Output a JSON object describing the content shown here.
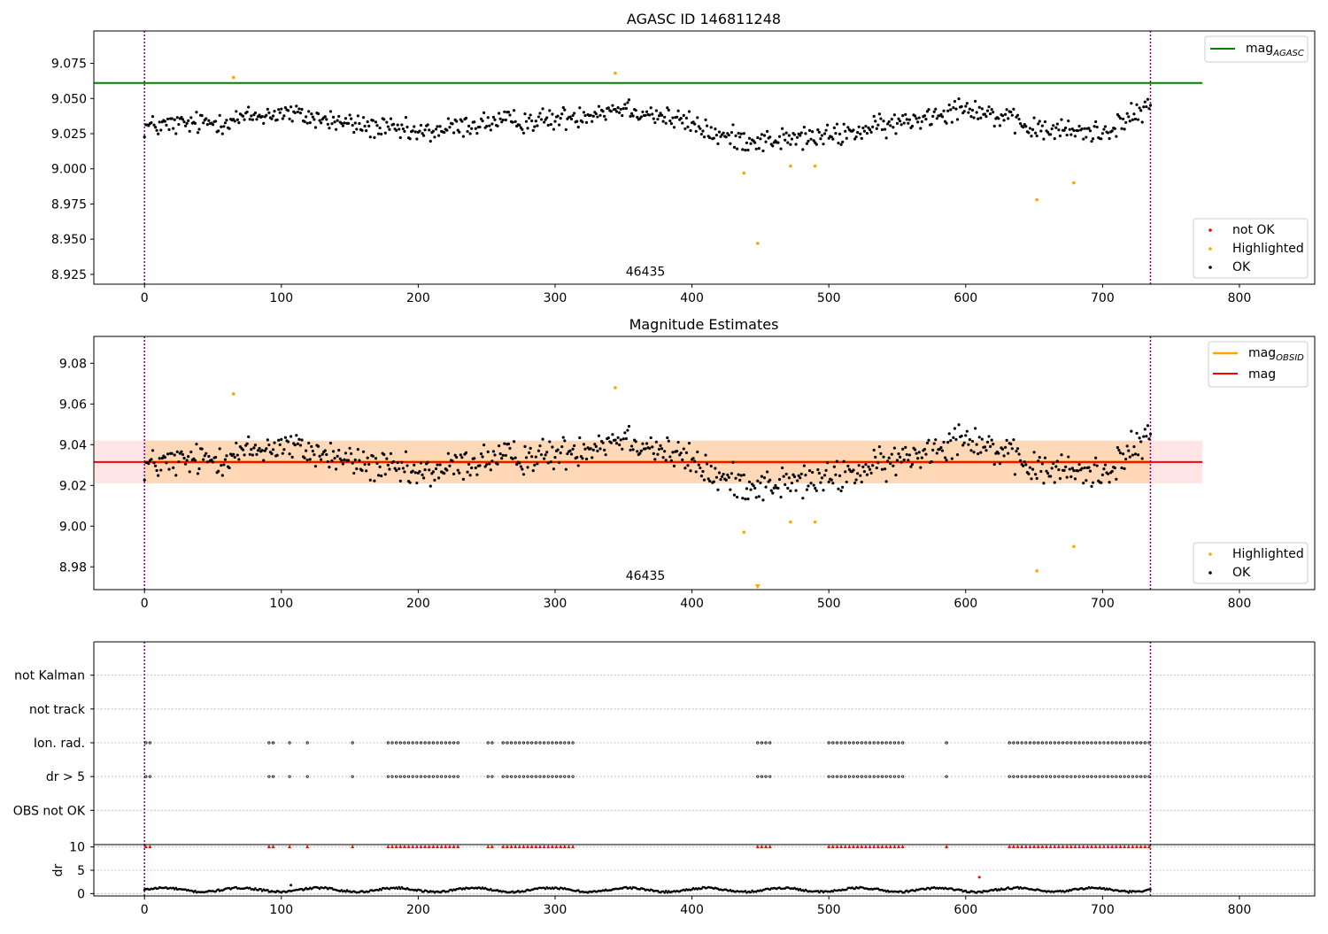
{
  "chart_data": [
    {
      "type": "scatter",
      "title": "AGASC ID 146811248",
      "xlabel": "",
      "ylabel": "",
      "xlim": [
        -37,
        855
      ],
      "ylim": [
        8.918,
        9.098
      ],
      "xticks": [
        0,
        100,
        200,
        300,
        400,
        500,
        600,
        700,
        800
      ],
      "xtick_labels": [
        "0",
        "100",
        "200",
        "300",
        "400",
        "500",
        "600",
        "700",
        "800"
      ],
      "yticks": [
        8.925,
        8.95,
        8.975,
        9.0,
        9.025,
        9.05,
        9.075
      ],
      "ytick_labels": [
        "8.925",
        "8.950",
        "8.975",
        "9.000",
        "9.025",
        "9.050",
        "9.075"
      ],
      "grid": false,
      "obsid_boundaries": [
        0,
        735
      ],
      "obsid_label": "46435",
      "obsid_label_x": 366,
      "obsid_label_y": 8.924,
      "hline": {
        "name": "mag_AGASC",
        "y": 9.061,
        "x_range": [
          -37,
          773
        ],
        "color": "#008000"
      },
      "legend_top": {
        "position": "upper-right",
        "entries": [
          {
            "main": "mag",
            "sub": "AGASC",
            "color": "#008000"
          }
        ]
      },
      "legend_bottom": {
        "position": "lower-right",
        "entries": [
          {
            "label": "not OK",
            "color": "#ff0000"
          },
          {
            "label": "Highlighted",
            "color": "#ffa500"
          },
          {
            "label": "OK",
            "color": "#000000"
          }
        ]
      },
      "highlighted_points": {
        "x": [
          65,
          344,
          438,
          448,
          472,
          490,
          652,
          679
        ],
        "y": [
          9.065,
          9.068,
          8.997,
          8.947,
          9.002,
          9.002,
          8.978,
          8.99
        ]
      },
      "ok_series": {
        "name": "OK",
        "n": 736,
        "x_step": 1,
        "profile_x": [
          0,
          50,
          100,
          150,
          200,
          250,
          300,
          350,
          400,
          420,
          450,
          500,
          550,
          600,
          650,
          700,
          735
        ],
        "profile_y": [
          9.03,
          9.033,
          9.04,
          9.032,
          9.025,
          9.033,
          9.035,
          9.044,
          9.032,
          9.023,
          9.02,
          9.023,
          9.032,
          9.045,
          9.028,
          9.026,
          9.044
        ],
        "spread": 0.008
      }
    },
    {
      "type": "scatter",
      "title": "Magnitude Estimates",
      "xlabel": "",
      "ylabel": "",
      "xlim": [
        -37,
        855
      ],
      "ylim": [
        8.9688,
        9.0932
      ],
      "xticks": [
        0,
        100,
        200,
        300,
        400,
        500,
        600,
        700,
        800
      ],
      "xtick_labels": [
        "0",
        "100",
        "200",
        "300",
        "400",
        "500",
        "600",
        "700",
        "800"
      ],
      "yticks": [
        8.98,
        9.0,
        9.02,
        9.04,
        9.06,
        9.08
      ],
      "ytick_labels": [
        "8.98",
        "9.00",
        "9.02",
        "9.04",
        "9.06",
        "9.08"
      ],
      "grid": false,
      "obsid_boundaries": [
        0,
        735
      ],
      "obsid_label": "46435",
      "obsid_label_x": 366,
      "obsid_label_y": 8.9735,
      "mag": {
        "y": 9.0315,
        "x_range": [
          -37,
          773
        ],
        "color": "#ff0000",
        "band": [
          9.021,
          9.042
        ]
      },
      "mag_obsid": {
        "y": 9.0315,
        "x_range": [
          0,
          735
        ],
        "color": "#ffa500",
        "band": [
          9.021,
          9.042
        ]
      },
      "legend_top": {
        "position": "upper-right",
        "entries": [
          {
            "main": "mag",
            "sub": "OBSID",
            "color": "#ffa500"
          },
          {
            "main": "mag",
            "sub": "",
            "color": "#ff0000"
          }
        ]
      },
      "legend_bottom": {
        "position": "lower-right",
        "entries": [
          {
            "label": "Highlighted",
            "color": "#ffa500"
          },
          {
            "label": "OK",
            "color": "#000000"
          }
        ]
      },
      "highlighted_points": {
        "x": [
          65,
          344,
          438,
          472,
          490,
          652,
          679
        ],
        "y": [
          9.065,
          9.068,
          8.997,
          9.002,
          9.002,
          8.978,
          8.99
        ]
      },
      "clipped_marker": {
        "x": 448,
        "y": 8.9705,
        "color": "#ffa500"
      },
      "ok_series": {
        "name": "OK",
        "n": 736,
        "x_step": 1,
        "profile_x": [
          0,
          50,
          100,
          150,
          200,
          250,
          300,
          350,
          400,
          420,
          450,
          500,
          550,
          600,
          650,
          700,
          735
        ],
        "profile_y": [
          9.03,
          9.033,
          9.04,
          9.032,
          9.025,
          9.033,
          9.035,
          9.044,
          9.032,
          9.023,
          9.02,
          9.023,
          9.032,
          9.045,
          9.028,
          9.026,
          9.044
        ],
        "spread": 0.008
      }
    },
    {
      "type": "scatter",
      "title": "",
      "xlabel": "",
      "ylabel": "",
      "xlim": [
        -37,
        855
      ],
      "flag_rows": [
        "not Kalman",
        "not track",
        "Ion. rad.",
        "dr > 5",
        "OBS not OK"
      ],
      "grid": true,
      "obsid_boundaries": [
        0,
        735
      ],
      "flagged_x_ranges": [
        [
          1,
          5
        ],
        [
          91,
          94
        ],
        [
          106,
          107
        ],
        [
          119,
          120
        ],
        [
          152,
          153
        ],
        [
          178,
          231
        ],
        [
          251,
          256
        ],
        [
          262,
          313
        ],
        [
          448,
          457
        ],
        [
          500,
          555
        ],
        [
          586,
          587
        ],
        [
          632,
          735
        ]
      ],
      "flag_step": 3,
      "flags_set": {
        "Ion. rad.": true,
        "dr > 5": true,
        "not Kalman": false,
        "not track": false,
        "OBS not OK": false
      }
    },
    {
      "type": "scatter",
      "title": "",
      "xlabel": "",
      "ylabel": "dr",
      "xlim": [
        -37,
        855
      ],
      "ylim": [
        -0.5,
        10.5
      ],
      "yticks": [
        0,
        5,
        10
      ],
      "ytick_labels": [
        "0",
        "5",
        "10"
      ],
      "grid": true,
      "obsid_boundaries": [
        0,
        735
      ],
      "clipped_value": 10,
      "clipped_marker_color": "#ff0000",
      "extra_points": {
        "x": [
          107,
          610
        ],
        "y": [
          1.8,
          3.5
        ]
      },
      "dr_series": {
        "name": "dr",
        "n": 736,
        "x_step": 1,
        "baseline": 0.8,
        "amplitude": 0.6
      }
    }
  ]
}
